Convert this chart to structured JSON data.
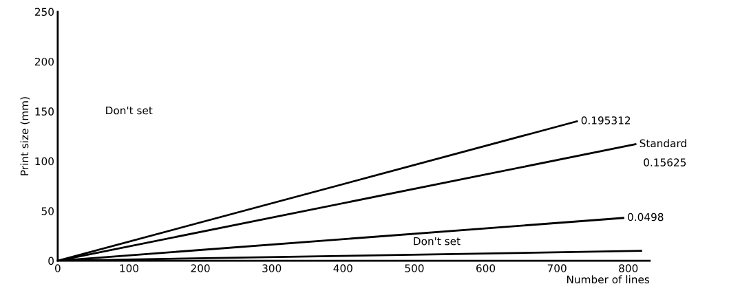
{
  "chart_data": {
    "type": "line",
    "xlabel": "Number of lines",
    "ylabel": "Print size (mm)",
    "xlim": [
      0,
      830
    ],
    "ylim": [
      0,
      250
    ],
    "xticks": [
      0,
      100,
      200,
      300,
      400,
      500,
      600,
      700,
      800
    ],
    "yticks": [
      0,
      50,
      100,
      150,
      200,
      250
    ],
    "grid": false,
    "legend": false,
    "marker": "none",
    "line_style": "solid",
    "series": [
      {
        "name": "0.195312",
        "color": "#000000",
        "x": [
          0,
          728
        ],
        "values": [
          0,
          140
        ]
      },
      {
        "name": "Standard",
        "color": "#000000",
        "x": [
          0,
          810
        ],
        "values": [
          0,
          117
        ]
      },
      {
        "name": "0.0498",
        "color": "#000000",
        "x": [
          0,
          793
        ],
        "values": [
          0,
          43
        ]
      },
      {
        "color": "#000000",
        "x": [
          0,
          818
        ],
        "values": [
          0,
          10
        ]
      }
    ],
    "annotations": [
      "Don't set",
      "Don't set",
      {
        "text": "0.15625",
        "x": 810,
        "y": 117
      }
    ]
  }
}
